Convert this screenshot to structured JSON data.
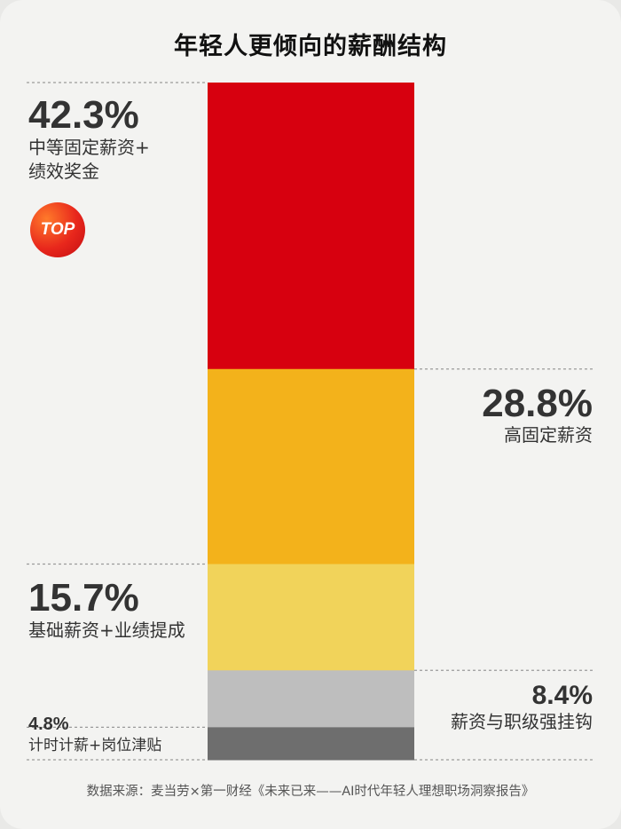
{
  "title": "年轻人更倾向的薪酬结构",
  "badge_text": "TOP",
  "source": "数据来源：麦当劳×第一财经《未来已来——AI时代年轻人理想职场洞察报告》",
  "chart_data": {
    "type": "bar",
    "subtype": "stacked-100",
    "title": "年轻人更倾向的薪酬结构",
    "unit": "%",
    "segments": [
      {
        "label": "中等固定薪资+绩效奖金",
        "label_lines": [
          "中等固定薪资+",
          "绩效奖金"
        ],
        "value": 42.3,
        "display": "42.3%",
        "color": "#d7000f",
        "label_side": "left",
        "badge": "TOP"
      },
      {
        "label": "高固定薪资",
        "label_lines": [
          "高固定薪资"
        ],
        "value": 28.8,
        "display": "28.8%",
        "color": "#f3b21b",
        "label_side": "right"
      },
      {
        "label": "基础薪资+业绩提成",
        "label_lines": [
          "基础薪资+业绩提成"
        ],
        "value": 15.7,
        "display": "15.7%",
        "color": "#f1d35a",
        "label_side": "left"
      },
      {
        "label": "薪资与职级强挂钩",
        "label_lines": [
          "薪资与职级强挂钩"
        ],
        "value": 8.4,
        "display": "8.4%",
        "color": "#bebebe",
        "label_side": "right"
      },
      {
        "label": "计时计薪+岗位津贴",
        "label_lines": [
          "计时计薪+岗位津贴"
        ],
        "value": 4.8,
        "display": "4.8%",
        "color": "#6e6e6e",
        "label_side": "left"
      }
    ],
    "legend": "none",
    "grid": false
  }
}
